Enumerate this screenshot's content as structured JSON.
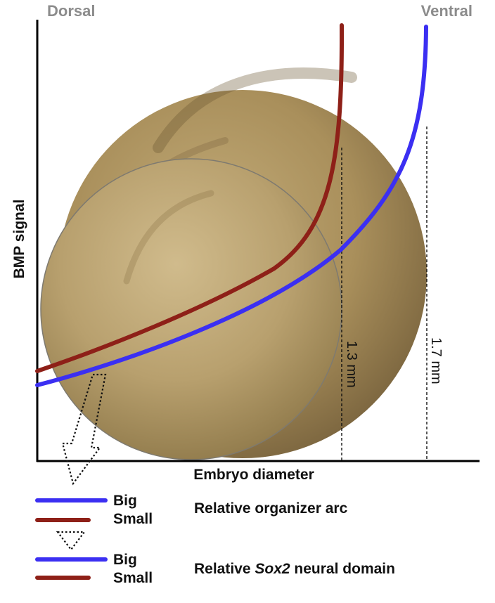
{
  "labels": {
    "dorsal": "Dorsal",
    "ventral": "Ventral",
    "y_axis": "BMP signal",
    "x_axis": "Embryo diameter",
    "small_diameter": "1.3 mm",
    "big_diameter": "1.7 mm"
  },
  "legend": {
    "row1": {
      "big": "Big",
      "small": "Small",
      "description": "Relative organizer arc"
    },
    "row2": {
      "big": "Big",
      "small": "Small",
      "description_prefix": "Relative ",
      "description_italic": "Sox2",
      "description_suffix": " neural domain"
    }
  },
  "colors": {
    "big_curve": "#3b2ff2",
    "small_curve": "#8e2018",
    "axis": "#000000",
    "corner_text": "#8c8c8c",
    "embryo_big": "#a88f5a",
    "embryo_small": "#b9a271"
  },
  "icons": [
    "dotted-arrow-icon",
    "dotted-triangle-icon"
  ]
}
